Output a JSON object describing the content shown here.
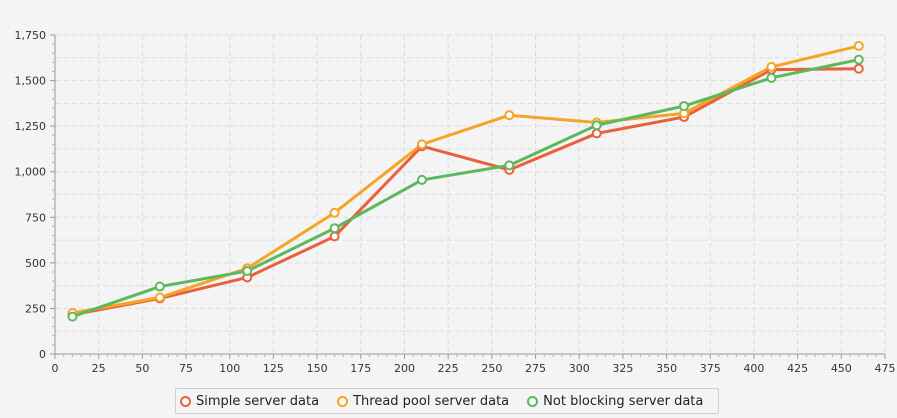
{
  "chart_data": {
    "type": "line",
    "title": "",
    "xlabel": "",
    "ylabel": "",
    "xlim": [
      0,
      475
    ],
    "ylim": [
      0,
      1750
    ],
    "x_ticks": [
      0,
      25,
      50,
      75,
      100,
      125,
      150,
      175,
      200,
      225,
      250,
      275,
      300,
      325,
      350,
      375,
      400,
      425,
      450,
      475
    ],
    "y_ticks": [
      0,
      250,
      500,
      750,
      1000,
      1250,
      1500,
      1750
    ],
    "x_tick_labels": [
      "0",
      "25",
      "50",
      "75",
      "100",
      "125",
      "150",
      "175",
      "200",
      "225",
      "250",
      "275",
      "300",
      "325",
      "350",
      "375",
      "400",
      "425",
      "450",
      "475"
    ],
    "y_tick_labels": [
      "0",
      "250",
      "500",
      "750",
      "1,000",
      "1,250",
      "1,500",
      "1,750"
    ],
    "grid": true,
    "legend_position": "bottom",
    "series": [
      {
        "name": "Simple server data",
        "color": "#e8603c",
        "points": [
          [
            10,
            215
          ],
          [
            60,
            305
          ],
          [
            110,
            420
          ],
          [
            160,
            645
          ],
          [
            210,
            1140
          ],
          [
            260,
            1010
          ],
          [
            310,
            1210
          ],
          [
            360,
            1300
          ],
          [
            410,
            1560
          ],
          [
            460,
            1565
          ]
        ]
      },
      {
        "name": "Thread pool server data",
        "color": "#f3a527",
        "points": [
          [
            10,
            225
          ],
          [
            60,
            310
          ],
          [
            110,
            470
          ],
          [
            160,
            775
          ],
          [
            210,
            1150
          ],
          [
            260,
            1310
          ],
          [
            310,
            1270
          ],
          [
            360,
            1320
          ],
          [
            410,
            1575
          ],
          [
            460,
            1690
          ]
        ]
      },
      {
        "name": "Not blocking server data",
        "color": "#5cb85c",
        "points": [
          [
            10,
            205
          ],
          [
            60,
            370
          ],
          [
            110,
            455
          ],
          [
            160,
            690
          ],
          [
            210,
            955
          ],
          [
            260,
            1035
          ],
          [
            310,
            1255
          ],
          [
            360,
            1360
          ],
          [
            410,
            1515
          ],
          [
            460,
            1615
          ]
        ]
      }
    ]
  }
}
